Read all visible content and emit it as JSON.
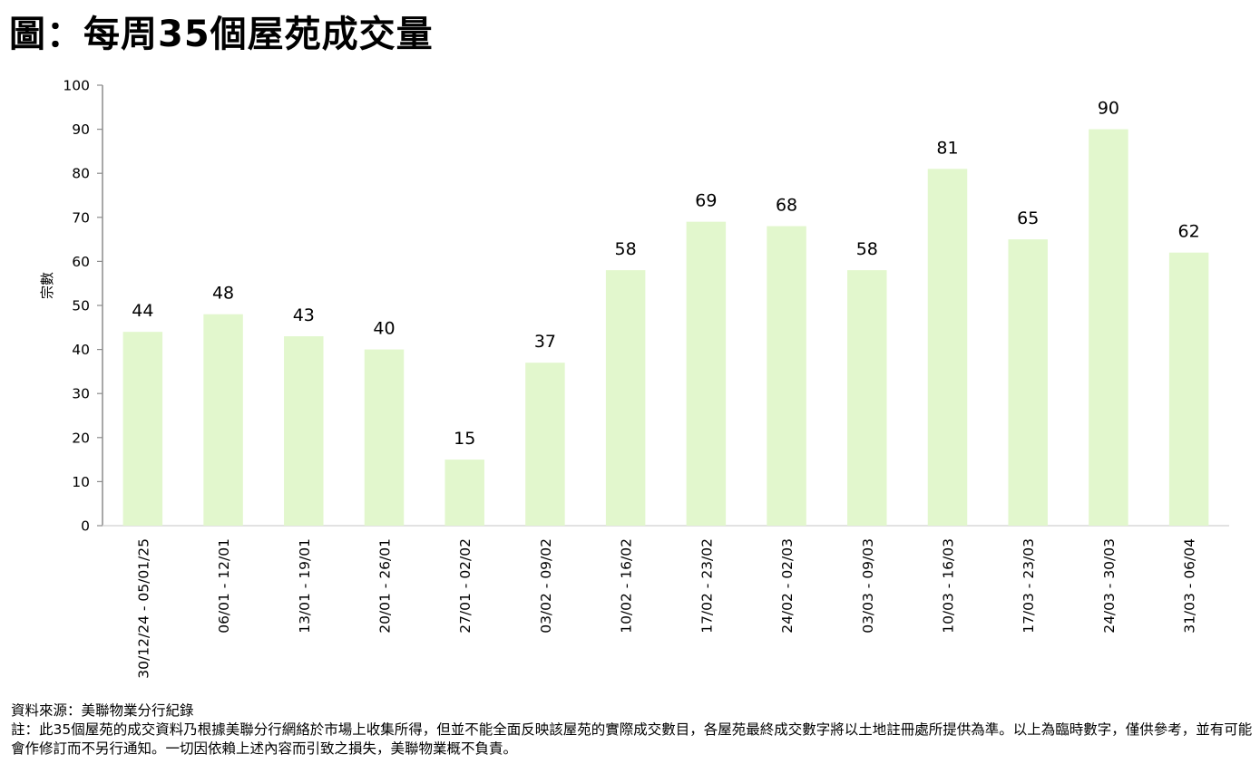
{
  "title": "圖：每周35個屋苑成交量",
  "chart_data": {
    "type": "bar",
    "title": "圖：每周35個屋苑成交量",
    "xlabel": "",
    "ylabel": "宗數",
    "ylim": [
      0,
      100
    ],
    "yticks": [
      0,
      10,
      20,
      30,
      40,
      50,
      60,
      70,
      80,
      90,
      100
    ],
    "grid": false,
    "legend": "none",
    "bar_color": "#e2f7cd",
    "categories": [
      "30/12/24 - 05/01/25",
      "06/01 - 12/01",
      "13/01 - 19/01",
      "20/01 - 26/01",
      "27/01 - 02/02",
      "03/02 - 09/02",
      "10/02 - 16/02",
      "17/02 - 23/02",
      "24/02 - 02/03",
      "03/03 - 09/03",
      "10/03 - 16/03",
      "17/03 - 23/03",
      "24/03 - 30/03",
      "31/03 - 06/04"
    ],
    "values": [
      44,
      48,
      43,
      40,
      15,
      37,
      58,
      69,
      68,
      58,
      81,
      65,
      90,
      62
    ]
  },
  "notes": {
    "source": "資料來源：美聯物業分行紀錄",
    "disclaimer": "註：此35個屋苑的成交資料乃根據美聯分行網絡於市場上收集所得，但並不能全面反映該屋苑的實際成交數目，各屋苑最終成交數字將以土地註冊處所提供為準。以上為臨時數字，僅供參考，並有可能會作修訂而不另行通知。一切因依賴上述內容而引致之損失，美聯物業概不負責。"
  }
}
